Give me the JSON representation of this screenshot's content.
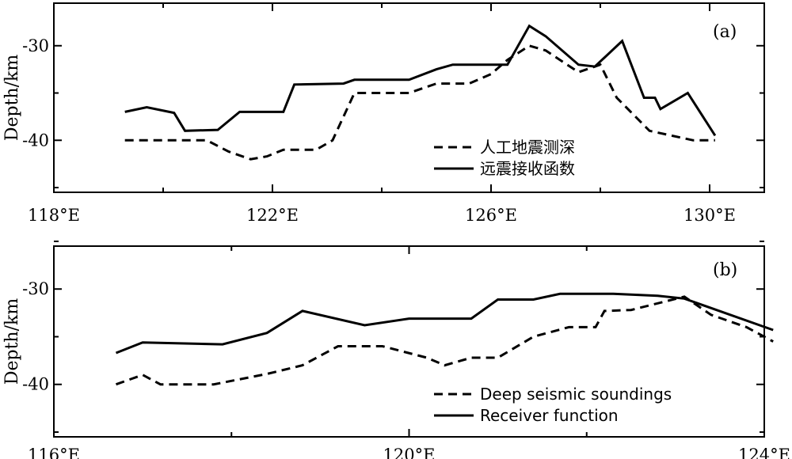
{
  "chart_data": [
    {
      "type": "line",
      "panel_label": "(a)",
      "ylabel": "Depth/km",
      "xlim": [
        118,
        131
      ],
      "ylim": [
        -45.5,
        -25.5
      ],
      "x_ticks": [
        118,
        122,
        126,
        130
      ],
      "x_tick_labels": [
        "118°E",
        "122°E",
        "126°E",
        "130°E"
      ],
      "y_ticks": [
        -30,
        -40
      ],
      "y_tick_labels": [
        "-30",
        "-40"
      ],
      "legend_position": "lower-right",
      "series": [
        {
          "name": "人工地震测深",
          "style": "dashed",
          "points": [
            [
              119.3,
              -40
            ],
            [
              120.8,
              -40
            ],
            [
              121.2,
              -41.2
            ],
            [
              121.6,
              -42
            ],
            [
              121.9,
              -41.7
            ],
            [
              122.2,
              -41
            ],
            [
              122.8,
              -41
            ],
            [
              123.1,
              -40
            ],
            [
              123.5,
              -35
            ],
            [
              124.5,
              -35
            ],
            [
              125.0,
              -34
            ],
            [
              125.6,
              -34
            ],
            [
              126.0,
              -33
            ],
            [
              126.3,
              -31.5
            ],
            [
              126.7,
              -30
            ],
            [
              127.0,
              -30.5
            ],
            [
              127.6,
              -32.8
            ],
            [
              128.0,
              -32
            ],
            [
              128.3,
              -35.5
            ],
            [
              128.9,
              -39
            ],
            [
              129.7,
              -40
            ],
            [
              130.1,
              -40
            ]
          ]
        },
        {
          "name": "远震接收函数",
          "style": "solid",
          "points": [
            [
              119.3,
              -37
            ],
            [
              119.7,
              -36.5
            ],
            [
              120.2,
              -37.1
            ],
            [
              120.4,
              -39
            ],
            [
              121.0,
              -38.9
            ],
            [
              121.4,
              -37
            ],
            [
              122.2,
              -37
            ],
            [
              122.4,
              -34.1
            ],
            [
              123.3,
              -34
            ],
            [
              123.5,
              -33.6
            ],
            [
              124.5,
              -33.6
            ],
            [
              125.0,
              -32.5
            ],
            [
              125.3,
              -32
            ],
            [
              126.3,
              -32
            ],
            [
              126.7,
              -27.9
            ],
            [
              127.0,
              -29
            ],
            [
              127.6,
              -32
            ],
            [
              127.9,
              -32.2
            ],
            [
              128.4,
              -29.5
            ],
            [
              128.8,
              -35.5
            ],
            [
              129.0,
              -35.5
            ],
            [
              129.1,
              -36.7
            ],
            [
              129.6,
              -35
            ],
            [
              130.1,
              -39.5
            ]
          ]
        }
      ]
    },
    {
      "type": "line",
      "panel_label": "(b)",
      "ylabel": "Depth/km",
      "xlim": [
        116,
        124
      ],
      "ylim": [
        -45.5,
        -25.5
      ],
      "x_ticks": [
        116,
        120,
        124
      ],
      "x_tick_labels": [
        "116°E",
        "120°E",
        "124°E"
      ],
      "y_ticks": [
        -30,
        -40
      ],
      "y_tick_labels": [
        "-30",
        "-40"
      ],
      "legend_position": "lower-right",
      "series": [
        {
          "name": "Deep seismic soundings",
          "style": "dashed",
          "points": [
            [
              116.7,
              -40
            ],
            [
              117.0,
              -39
            ],
            [
              117.2,
              -40
            ],
            [
              117.8,
              -40
            ],
            [
              118.4,
              -38.9
            ],
            [
              118.8,
              -38
            ],
            [
              119.2,
              -36
            ],
            [
              119.7,
              -36
            ],
            [
              120.2,
              -37.2
            ],
            [
              120.4,
              -38
            ],
            [
              120.7,
              -37.2
            ],
            [
              121.0,
              -37.2
            ],
            [
              121.4,
              -35
            ],
            [
              121.8,
              -34
            ],
            [
              122.1,
              -34
            ],
            [
              122.2,
              -32.3
            ],
            [
              122.5,
              -32.2
            ],
            [
              122.8,
              -31.5
            ],
            [
              123.1,
              -30.8
            ],
            [
              123.4,
              -32.7
            ],
            [
              123.8,
              -34
            ],
            [
              124.1,
              -35.5
            ]
          ]
        },
        {
          "name": "Receiver function",
          "style": "solid",
          "points": [
            [
              116.7,
              -36.7
            ],
            [
              117.0,
              -35.6
            ],
            [
              117.9,
              -35.8
            ],
            [
              118.4,
              -34.6
            ],
            [
              118.8,
              -32.3
            ],
            [
              119.5,
              -33.8
            ],
            [
              120.0,
              -33.1
            ],
            [
              120.7,
              -33.1
            ],
            [
              121.0,
              -31.1
            ],
            [
              121.4,
              -31.1
            ],
            [
              121.7,
              -30.5
            ],
            [
              122.3,
              -30.5
            ],
            [
              122.8,
              -30.7
            ],
            [
              123.1,
              -31
            ],
            [
              124.1,
              -34.3
            ]
          ]
        }
      ]
    }
  ]
}
